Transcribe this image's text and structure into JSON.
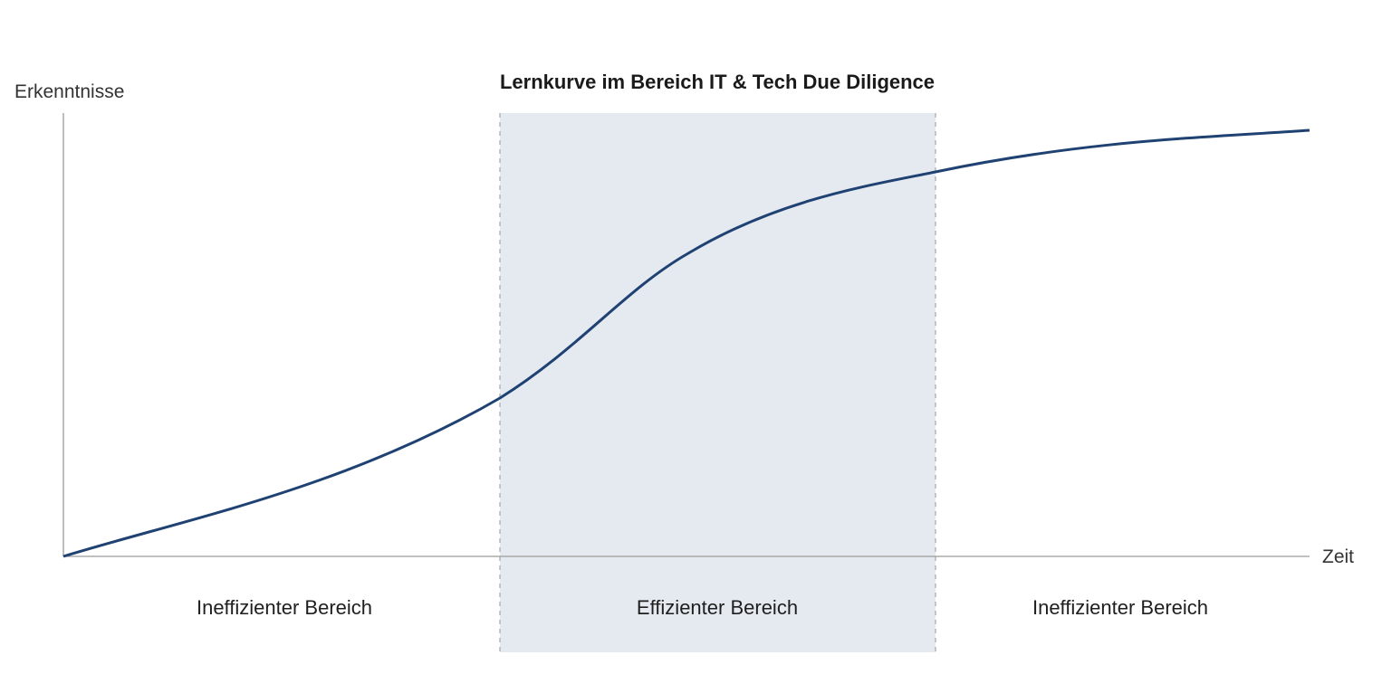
{
  "diagram": {
    "title": "Lernkurve im Bereich IT & Tech Due Diligence",
    "y_axis_label": "Erkenntnisse",
    "x_axis_label": "Zeit",
    "regions": [
      {
        "label": "Ineffizienter Bereich",
        "highlighted": false
      },
      {
        "label": "Effizienter Bereich",
        "highlighted": true
      },
      {
        "label": "Ineffizienter Bereich",
        "highlighted": false
      }
    ],
    "colors": {
      "curve": "#1f4273",
      "highlight": "#e5eaf1",
      "axis": "#9a9a9a",
      "divider": "#a6a6a6"
    }
  }
}
